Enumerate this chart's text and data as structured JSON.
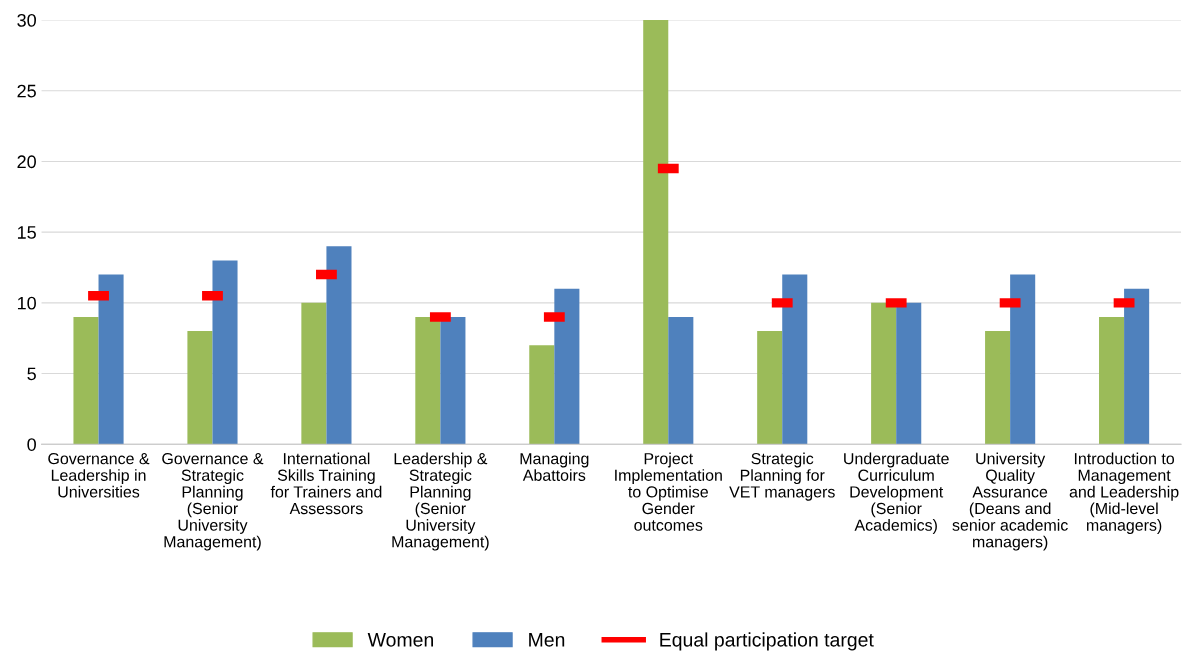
{
  "chart_data": {
    "type": "bar",
    "categories": [
      "Governance &\nLeadership in\nUniversities",
      "Governance &\nStrategic\nPlanning\n(Senior\nUniversity\nManagement)",
      "International\nSkills Training\nfor Trainers and\nAssessors",
      "Leadership &\nStrategic\nPlanning\n(Senior\nUniversity\nManagement)",
      "Managing\nAbattoirs",
      "Project\nImplementation\nto Optimise\nGender\noutcomes",
      "Strategic\nPlanning for\nVET managers",
      "Undergraduate\nCurriculum\nDevelopment\n(Senior\nAcademics)",
      "University\nQuality\nAssurance\n(Deans and\nsenior academic\nmanagers)",
      "Introduction to\nManagement\nand Leadership\n(Mid-level\nmanagers)"
    ],
    "series": [
      {
        "name": "Women",
        "color": "#9bbb59",
        "values": [
          9,
          8,
          10,
          9,
          7,
          30,
          8,
          10,
          8,
          9
        ]
      },
      {
        "name": "Men",
        "color": "#4f81bd",
        "values": [
          12,
          13,
          14,
          9,
          11,
          9,
          12,
          10,
          12,
          11
        ]
      },
      {
        "name": "Equal participation target",
        "type": "scatter",
        "color": "#ff0000",
        "values": [
          10.5,
          10.5,
          12,
          9,
          9,
          19.5,
          10,
          10,
          10,
          10
        ]
      }
    ],
    "ylim": [
      0,
      30
    ],
    "yticks": [
      0,
      5,
      10,
      15,
      20,
      25,
      30
    ],
    "grid": "y",
    "legend": "bottom"
  }
}
